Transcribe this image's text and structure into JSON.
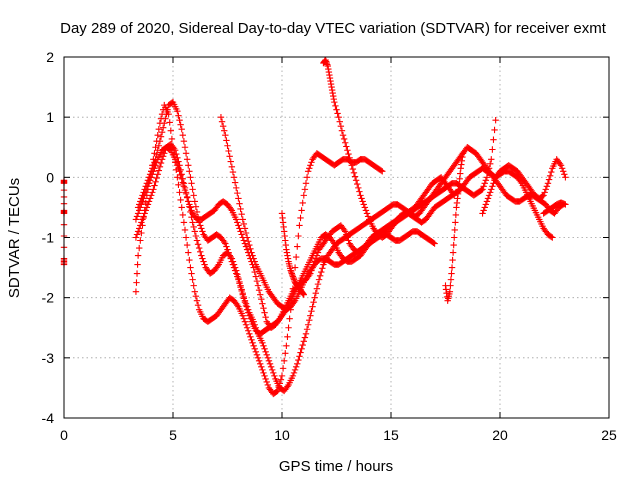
{
  "chart_data": {
    "type": "scatter",
    "title": "Day 289 of 2020, Sidereal Day-to-day VTEC variation (SDTVAR) for receiver exmt",
    "xlabel": "GPS time / hours",
    "ylabel": "SDTVAR / TECUs",
    "xlim": [
      0,
      25
    ],
    "ylim": [
      -4,
      2
    ],
    "x_ticks": [
      "0",
      "5",
      "10",
      "15",
      "20",
      "25"
    ],
    "y_ticks": [
      "-4",
      "-3",
      "-2",
      "-1",
      "0",
      "1",
      "2"
    ],
    "grid": true,
    "marker": "plus",
    "color": "#ff0000",
    "series": [
      {
        "x": [
          0,
          0,
          0,
          0,
          0,
          0
        ],
        "y": [
          -0.05,
          -0.1,
          -0.55,
          -0.6,
          -1.35,
          -1.45
        ]
      },
      {
        "x": [
          3.3,
          3.4,
          3.6,
          3.8,
          4.0,
          4.2,
          4.4,
          4.6,
          4.8,
          5.0,
          5.2,
          5.4,
          5.6,
          5.8,
          6.0,
          6.2,
          6.4,
          6.6,
          6.8,
          7.0,
          7.2,
          7.4,
          7.6,
          7.8,
          8.0,
          8.2,
          8.4,
          8.6,
          8.8,
          9.0,
          9.2,
          9.4,
          9.6,
          9.8,
          10.0,
          10.2,
          10.4,
          10.6,
          10.8,
          11.0,
          11.2,
          11.4,
          11.6,
          11.8,
          12.0,
          12.2,
          12.4,
          12.6,
          12.8,
          13.0,
          13.2,
          13.4,
          13.6,
          13.8,
          14.0,
          14.2,
          14.4,
          14.6
        ],
        "y": [
          -1.9,
          -1.3,
          -0.8,
          -0.3,
          0.1,
          0.5,
          0.9,
          1.2,
          1.05,
          0.5,
          0.0,
          -0.5,
          -1.0,
          -1.5,
          -1.9,
          -2.2,
          -2.35,
          -2.4,
          -2.35,
          -2.3,
          -2.2,
          -2.1,
          -2.0,
          -2.05,
          -2.15,
          -2.3,
          -2.5,
          -2.7,
          -2.9,
          -3.1,
          -3.3,
          -3.5,
          -3.6,
          -3.55,
          -3.3,
          -2.8,
          -2.2,
          -1.5,
          -0.8,
          -0.3,
          0.1,
          0.3,
          0.4,
          0.35,
          0.3,
          0.25,
          0.2,
          0.25,
          0.3,
          0.3,
          0.25,
          0.25,
          0.3,
          0.3,
          0.25,
          0.2,
          0.15,
          0.1
        ]
      },
      {
        "x": [
          3.3,
          3.5,
          3.7,
          3.9,
          4.1,
          4.3,
          4.5,
          4.7,
          4.9,
          5.1,
          5.3,
          5.5,
          5.7,
          5.9,
          6.1,
          6.3,
          6.5,
          6.7,
          6.9,
          7.1,
          7.3,
          7.5,
          7.7,
          7.9,
          8.1,
          8.3,
          8.5,
          8.7,
          8.9,
          9.1,
          9.3,
          9.5,
          9.7,
          9.9,
          10.1,
          10.3,
          10.5,
          10.7,
          10.9,
          11.1,
          11.3,
          11.5,
          11.7,
          11.9,
          12.1,
          12.3,
          12.5,
          12.7,
          12.9,
          13.1,
          13.3,
          13.5,
          13.7,
          13.9,
          14.1,
          14.3,
          14.5,
          14.7,
          14.9,
          15.1,
          15.3,
          15.5,
          15.7,
          15.9,
          16.1,
          16.3,
          16.5,
          16.7,
          16.9,
          17.1,
          17.3,
          17.5,
          17.7,
          17.9
        ],
        "y": [
          -0.7,
          -0.5,
          -0.3,
          -0.1,
          0.1,
          0.3,
          0.45,
          0.5,
          0.45,
          0.3,
          0.1,
          -0.15,
          -0.4,
          -0.6,
          -0.7,
          -0.7,
          -0.65,
          -0.6,
          -0.55,
          -0.45,
          -0.4,
          -0.45,
          -0.55,
          -0.7,
          -0.9,
          -1.1,
          -1.3,
          -1.5,
          -1.8,
          -2.1,
          -2.4,
          -2.5,
          -2.45,
          -2.35,
          -2.2,
          -2.05,
          -1.9,
          -1.8,
          -1.75,
          -1.7,
          -1.6,
          -1.4,
          -1.2,
          -1.1,
          -1.0,
          -0.9,
          -0.85,
          -0.8,
          -0.9,
          -1.1,
          -1.2,
          -1.25,
          -1.2,
          -1.1,
          -1.0,
          -0.95,
          -0.9,
          -0.85,
          -0.8,
          -0.75,
          -0.7,
          -0.65,
          -0.6,
          -0.55,
          -0.5,
          -0.4,
          -0.3,
          -0.2,
          -0.1,
          -0.05,
          0.0,
          -0.1,
          -0.2,
          -0.3
        ]
      },
      {
        "x": [
          3.4,
          3.6,
          3.8,
          4.0,
          4.2,
          4.4,
          4.6,
          4.8,
          5.0,
          5.2,
          5.4,
          5.6,
          5.8,
          6.0,
          6.2,
          6.4,
          6.6,
          6.8,
          7.0,
          7.2,
          7.4,
          7.6,
          7.8,
          8.0,
          8.2,
          8.4,
          8.6,
          8.8,
          9.0,
          9.2,
          9.4,
          9.6,
          9.8,
          10.0,
          10.2,
          10.4,
          10.6,
          10.8,
          11.0,
          11.2,
          11.4,
          11.6,
          11.8,
          12.0,
          12.2,
          12.4,
          12.6,
          12.8,
          13.0,
          13.2,
          13.4,
          13.6,
          13.8,
          14.0,
          14.2,
          14.4,
          14.6,
          14.8,
          15.0,
          15.2,
          15.4,
          15.6,
          15.8,
          16.0,
          16.2,
          16.4,
          16.6,
          16.8,
          17.0,
          17.2,
          17.4,
          17.6,
          17.8,
          18.0,
          18.2,
          18.4,
          18.6,
          18.8,
          19.0,
          19.2,
          19.4,
          19.6,
          19.8
        ],
        "y": [
          -0.5,
          -0.3,
          -0.1,
          0.1,
          0.3,
          0.6,
          0.9,
          1.2,
          1.25,
          1.1,
          0.8,
          0.4,
          0.0,
          -0.4,
          -0.75,
          -0.95,
          -1.05,
          -1.0,
          -0.95,
          -1.0,
          -1.1,
          -1.3,
          -1.5,
          -1.7,
          -1.95,
          -2.2,
          -2.4,
          -2.55,
          -2.6,
          -2.55,
          -2.5,
          -2.45,
          -2.4,
          -2.3,
          -2.2,
          -2.05,
          -1.9,
          -1.75,
          -1.6,
          -1.45,
          -1.3,
          -1.15,
          -1.0,
          -0.95,
          -1.0,
          -1.1,
          -1.25,
          -1.35,
          -1.4,
          -1.4,
          -1.35,
          -1.3,
          -1.2,
          -1.1,
          -1.0,
          -0.95,
          -0.9,
          -0.85,
          -0.8,
          -0.75,
          -0.7,
          -0.65,
          -0.6,
          -0.55,
          -0.5,
          -0.45,
          -0.4,
          -0.35,
          -0.3,
          -0.25,
          -0.2,
          -0.15,
          -0.1,
          -0.1,
          -0.15,
          -0.2,
          -0.25,
          -0.3,
          -0.25,
          -0.2,
          0.0,
          0.3,
          0.95
        ]
      },
      {
        "x": [
          3.3,
          3.5,
          3.7,
          3.9,
          4.1,
          4.3,
          4.5,
          4.7,
          4.9,
          5.1,
          5.3,
          5.5,
          5.7,
          5.9,
          6.1,
          6.3,
          6.5,
          6.7,
          6.9,
          7.1,
          7.3,
          7.5,
          7.7,
          7.9,
          8.1,
          8.3,
          8.5,
          8.7,
          8.9,
          9.1,
          9.3,
          9.5,
          9.7,
          9.9,
          10.1,
          10.3,
          10.5,
          10.7,
          10.9,
          11.1,
          11.3,
          11.5,
          11.7,
          11.9,
          12.1,
          12.3,
          12.5,
          12.7,
          12.9,
          13.1,
          13.3,
          13.5,
          13.7,
          13.9,
          14.1,
          14.3,
          14.5,
          14.7,
          14.9,
          15.1,
          15.3,
          15.5,
          15.7,
          15.9,
          16.1,
          16.3,
          16.5,
          16.7,
          16.9,
          17.1,
          17.3,
          17.5,
          17.7,
          17.9,
          18.1,
          18.3,
          18.5,
          18.7,
          18.9,
          19.1,
          19.3,
          19.5,
          19.7,
          19.9,
          20.1,
          20.3,
          20.5,
          20.7,
          20.9,
          21.1,
          21.3,
          21.5,
          21.7,
          21.9,
          22.1,
          22.3,
          22.5,
          22.7,
          22.9
        ],
        "y": [
          -1.0,
          -0.8,
          -0.6,
          -0.4,
          -0.2,
          0.05,
          0.3,
          0.5,
          0.55,
          0.45,
          0.2,
          -0.1,
          -0.4,
          -0.75,
          -1.05,
          -1.3,
          -1.5,
          -1.6,
          -1.55,
          -1.45,
          -1.3,
          -1.25,
          -1.35,
          -1.55,
          -1.8,
          -2.05,
          -2.25,
          -2.4,
          -2.6,
          -2.75,
          -2.95,
          -3.15,
          -3.35,
          -3.5,
          -3.55,
          -3.45,
          -3.3,
          -3.1,
          -2.85,
          -2.6,
          -2.3,
          -2.0,
          -1.7,
          -1.45,
          -1.3,
          -1.2,
          -1.1,
          -1.05,
          -1.0,
          -0.95,
          -0.9,
          -0.85,
          -0.8,
          -0.75,
          -0.7,
          -0.65,
          -0.6,
          -0.55,
          -0.5,
          -0.45,
          -0.45,
          -0.5,
          -0.55,
          -0.6,
          -0.65,
          -0.6,
          -0.5,
          -0.4,
          -0.3,
          -0.2,
          -0.1,
          0.0,
          0.1,
          0.2,
          0.3,
          0.4,
          0.5,
          0.45,
          0.4,
          0.3,
          0.2,
          0.1,
          0.0,
          -0.1,
          -0.2,
          -0.3,
          -0.35,
          -0.4,
          -0.4,
          -0.35,
          -0.3,
          -0.3,
          -0.35,
          -0.4,
          -0.45,
          -0.55,
          -0.6,
          -0.5,
          -0.45
        ]
      },
      {
        "x": [
          7.2,
          7.4,
          7.6,
          7.8,
          8.0,
          8.2,
          8.4,
          8.6,
          8.8,
          9.0,
          9.2,
          9.4,
          9.6,
          9.8,
          10.0,
          10.2,
          10.4,
          10.6,
          10.8,
          11.0,
          11.2,
          11.4,
          11.6,
          11.8,
          12.0,
          12.2,
          12.4,
          12.6,
          12.8,
          13.0,
          13.2,
          13.4,
          13.6,
          13.8,
          14.0,
          14.2,
          14.4,
          14.6,
          14.8,
          15.0,
          15.2,
          15.4,
          15.6,
          15.8,
          16.0,
          16.2,
          16.4,
          16.6,
          16.8,
          17.0
        ],
        "y": [
          1.0,
          0.7,
          0.35,
          0.0,
          -0.35,
          -0.7,
          -1.0,
          -1.25,
          -1.45,
          -1.6,
          -1.75,
          -1.9,
          -2.0,
          -2.1,
          -2.15,
          -2.2,
          -2.15,
          -2.05,
          -1.9,
          -1.75,
          -1.6,
          -1.5,
          -1.4,
          -1.35,
          -1.35,
          -1.4,
          -1.45,
          -1.45,
          -1.4,
          -1.35,
          -1.3,
          -1.25,
          -1.2,
          -1.15,
          -1.1,
          -1.05,
          -1.0,
          -0.95,
          -0.95,
          -1.0,
          -1.05,
          -1.05,
          -1.0,
          -0.95,
          -0.9,
          -0.9,
          -0.95,
          -1.0,
          -1.05,
          -1.1
        ]
      },
      {
        "x": [
          11.9,
          12.0,
          12.1,
          12.2,
          12.3,
          12.4,
          12.6,
          12.8,
          13.0,
          13.2,
          13.4,
          13.6,
          13.8,
          14.0,
          14.2,
          14.4,
          14.6,
          14.8,
          15.0,
          15.2,
          15.4,
          15.6,
          15.8,
          16.0,
          16.2,
          16.4,
          16.6,
          16.8,
          17.0,
          17.2,
          17.4,
          17.6,
          17.8,
          18.0,
          18.2,
          18.4,
          18.6,
          18.8,
          19.0,
          19.2,
          19.4,
          19.6,
          19.8,
          20.0,
          20.2,
          20.4,
          20.6,
          20.8,
          21.0,
          21.2,
          21.4,
          21.6,
          21.8,
          22.0,
          22.2,
          22.4
        ],
        "y": [
          1.9,
          1.95,
          1.85,
          1.65,
          1.45,
          1.25,
          1.0,
          0.7,
          0.45,
          0.2,
          -0.05,
          -0.3,
          -0.5,
          -0.7,
          -0.85,
          -0.95,
          -1.0,
          -0.95,
          -0.85,
          -0.75,
          -0.65,
          -0.6,
          -0.6,
          -0.65,
          -0.7,
          -0.75,
          -0.7,
          -0.6,
          -0.5,
          -0.45,
          -0.4,
          -0.35,
          -0.3,
          -0.25,
          -0.2,
          -0.1,
          0.0,
          0.05,
          0.1,
          0.15,
          0.1,
          0.05,
          0.0,
          0.05,
          0.1,
          0.1,
          0.05,
          0.0,
          -0.1,
          -0.25,
          -0.4,
          -0.55,
          -0.7,
          -0.85,
          -0.95,
          -1.0
        ]
      },
      {
        "x": [
          10.0,
          10.1,
          10.2,
          10.3,
          10.4,
          10.5,
          10.6,
          10.7,
          10.8,
          10.9,
          11.0
        ],
        "y": [
          -0.6,
          -0.9,
          -1.2,
          -1.4,
          -1.55,
          -1.65,
          -1.75,
          -1.8,
          -1.85,
          -1.9,
          -1.95
        ]
      },
      {
        "x": [
          17.5,
          17.6,
          17.7,
          17.8,
          17.9,
          18.0,
          18.1,
          18.2,
          18.3
        ],
        "y": [
          -1.8,
          -2.05,
          -1.9,
          -1.5,
          -1.0,
          -0.5,
          -0.2,
          0.15,
          0.4
        ]
      },
      {
        "x": [
          19.2,
          19.4,
          19.6,
          19.8,
          20.0,
          20.2,
          20.4,
          20.6,
          20.8,
          21.0,
          21.2,
          21.4,
          21.6,
          21.8,
          22.0,
          22.2,
          22.4,
          22.6,
          22.8,
          23.0
        ],
        "y": [
          -0.6,
          -0.4,
          -0.2,
          0.0,
          0.1,
          0.15,
          0.2,
          0.15,
          0.1,
          0.0,
          -0.1,
          -0.2,
          -0.3,
          -0.35,
          -0.3,
          -0.1,
          0.15,
          0.3,
          0.2,
          0.0
        ]
      },
      {
        "x": [
          22.0,
          22.2,
          22.4,
          22.6,
          22.8,
          23.0
        ],
        "y": [
          -0.6,
          -0.55,
          -0.5,
          -0.45,
          -0.42,
          -0.45
        ]
      }
    ]
  }
}
